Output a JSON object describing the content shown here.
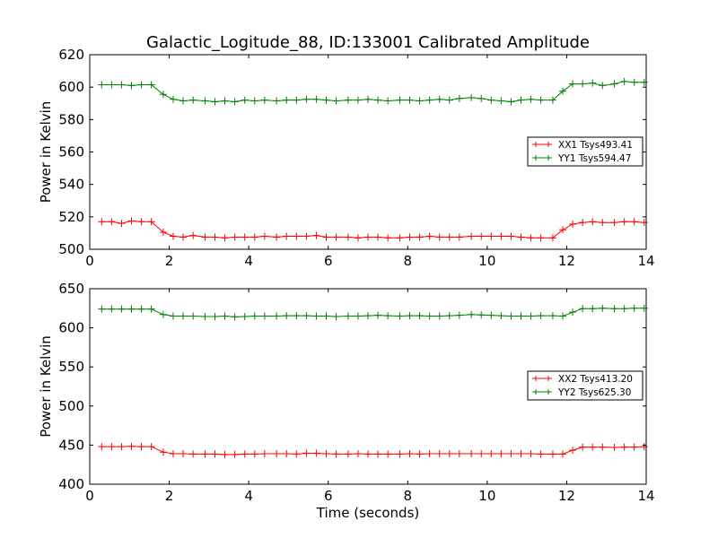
{
  "title": "Galactic_Logitude_88, ID:133001 Calibrated Amplitude",
  "xlabel": "Time (seconds)",
  "colors": {
    "red": "#ff0000",
    "green": "#007f00"
  },
  "chart_data": [
    {
      "type": "line",
      "ylabel": "Power in Kelvin",
      "xlim": [
        0,
        14
      ],
      "ylim": [
        500,
        620
      ],
      "xticks": [
        "0",
        "2",
        "4",
        "6",
        "8",
        "10",
        "12",
        "14"
      ],
      "yticks": [
        "500",
        "520",
        "540",
        "560",
        "580",
        "600",
        "620"
      ],
      "grid": false,
      "legend_position": "center-right",
      "x": [
        0.3,
        0.55,
        0.8,
        1.05,
        1.3,
        1.55,
        1.85,
        2.1,
        2.35,
        2.6,
        2.9,
        3.15,
        3.4,
        3.65,
        3.9,
        4.15,
        4.4,
        4.7,
        4.95,
        5.2,
        5.45,
        5.7,
        5.95,
        6.2,
        6.5,
        6.75,
        7.0,
        7.25,
        7.5,
        7.8,
        8.05,
        8.3,
        8.55,
        8.8,
        9.05,
        9.3,
        9.6,
        9.85,
        10.1,
        10.35,
        10.6,
        10.85,
        11.1,
        11.35,
        11.65,
        11.9,
        12.15,
        12.4,
        12.65,
        12.9,
        13.2,
        13.45,
        13.7,
        13.95
      ],
      "series": [
        {
          "name": "XX1 Tsys493.41",
          "color": "#ff0000",
          "values": [
            517,
            517,
            516,
            517.5,
            517,
            517,
            510.5,
            508,
            507.5,
            508.5,
            507.5,
            507.5,
            507,
            507.5,
            507.5,
            507.5,
            508,
            507.5,
            508,
            508,
            508,
            508.5,
            507.5,
            507.5,
            507.5,
            507,
            507.5,
            507.5,
            507,
            507,
            507.5,
            507.5,
            508,
            507.5,
            507.5,
            507.5,
            508,
            508,
            508,
            508,
            508,
            507.5,
            507,
            507,
            507,
            512,
            515.5,
            516.5,
            517,
            516.5,
            516.5,
            517,
            517,
            516.5
          ]
        },
        {
          "name": "YY1 Tsys594.47",
          "color": "#007f00",
          "values": [
            601.5,
            601.5,
            601.5,
            601,
            601.5,
            601.5,
            595.5,
            592.5,
            591.5,
            592,
            591.5,
            591,
            591.5,
            591,
            592,
            591.5,
            592,
            591.5,
            592,
            592,
            592.5,
            592.5,
            592,
            591.5,
            592,
            592,
            592.5,
            592,
            591.5,
            592,
            592,
            591.5,
            592,
            592.5,
            592,
            593,
            593.5,
            593,
            592,
            591.5,
            591,
            592,
            592.5,
            592,
            592,
            597.5,
            602,
            602,
            602.5,
            601,
            602,
            603.5,
            603,
            603
          ]
        }
      ]
    },
    {
      "type": "line",
      "ylabel": "Power in Kelvin",
      "xlabel": "Time (seconds)",
      "xlim": [
        0,
        14
      ],
      "ylim": [
        400,
        650
      ],
      "xticks": [
        "0",
        "2",
        "4",
        "6",
        "8",
        "10",
        "12",
        "14"
      ],
      "yticks": [
        "400",
        "450",
        "500",
        "550",
        "600",
        "650"
      ],
      "grid": false,
      "legend_position": "center-right",
      "x": [
        0.3,
        0.55,
        0.8,
        1.05,
        1.3,
        1.55,
        1.85,
        2.1,
        2.35,
        2.6,
        2.9,
        3.15,
        3.4,
        3.65,
        3.9,
        4.15,
        4.4,
        4.7,
        4.95,
        5.2,
        5.45,
        5.7,
        5.95,
        6.2,
        6.5,
        6.75,
        7.0,
        7.25,
        7.5,
        7.8,
        8.05,
        8.3,
        8.55,
        8.8,
        9.05,
        9.3,
        9.6,
        9.85,
        10.1,
        10.35,
        10.6,
        10.85,
        11.1,
        11.35,
        11.65,
        11.9,
        12.15,
        12.4,
        12.65,
        12.9,
        13.2,
        13.45,
        13.7,
        13.95
      ],
      "series": [
        {
          "name": "XX2 Tsys413.20",
          "color": "#ff0000",
          "values": [
            448,
            448,
            448,
            448.5,
            448,
            448,
            441,
            439,
            439,
            438.5,
            438.5,
            438.5,
            438,
            438,
            438.5,
            438.5,
            439,
            439,
            439,
            438.5,
            439.5,
            439.5,
            439,
            438.5,
            438.5,
            439,
            438.5,
            438.5,
            438.5,
            438.5,
            439,
            438.5,
            439,
            439,
            439,
            439,
            439,
            439,
            439,
            439,
            439,
            439,
            439,
            438.5,
            438.5,
            438.5,
            443.5,
            447.5,
            447.5,
            447.5,
            447,
            447.5,
            447.5,
            448
          ]
        },
        {
          "name": "YY2 Tsys625.30",
          "color": "#007f00",
          "values": [
            624,
            624,
            624,
            624,
            624,
            624,
            617,
            615,
            615,
            615,
            614.5,
            614.5,
            615,
            614,
            614.5,
            615,
            615,
            615,
            615.5,
            615.5,
            615.5,
            615,
            615,
            614.5,
            615,
            615,
            615.5,
            616,
            615.5,
            615,
            615.5,
            615.5,
            615,
            615,
            615.5,
            616,
            617,
            616.5,
            616,
            615.5,
            615,
            615,
            615,
            615.5,
            615.5,
            615,
            620,
            624.5,
            624.5,
            625,
            624.5,
            624.5,
            625,
            625
          ]
        }
      ]
    }
  ]
}
